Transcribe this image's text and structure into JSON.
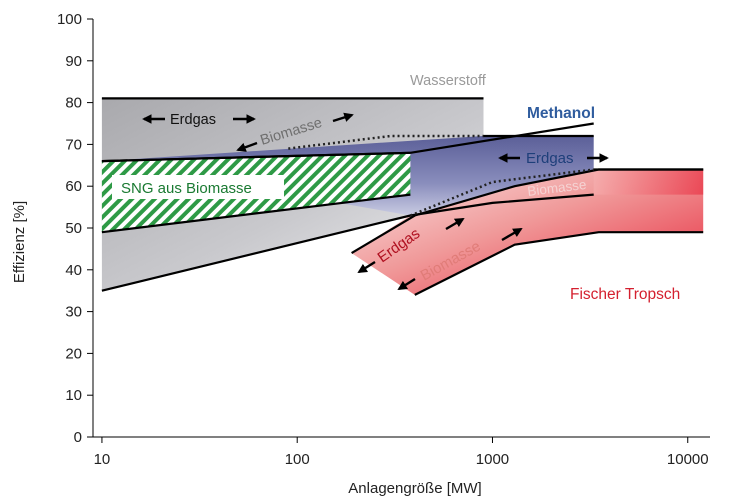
{
  "chart_data": {
    "type": "area",
    "xlabel": "Anlagengröße [MW]",
    "ylabel": "Effizienz [%]",
    "x_scale": "log",
    "xlim": [
      9,
      13000
    ],
    "ylim": [
      0,
      100
    ],
    "x_ticks": [
      10,
      100,
      1000,
      10000
    ],
    "x_tick_labels": [
      "10",
      "100",
      "1000",
      "10000"
    ],
    "y_ticks": [
      0,
      10,
      20,
      30,
      40,
      50,
      60,
      70,
      80,
      90,
      100
    ],
    "grid": false,
    "colors": {
      "gray_region": "#b9b9bd",
      "blue_region": "#6d72a8",
      "red_region": "#e8263a",
      "green_hatch": "#2e9a46",
      "wasserstoff_label": "#9a9a9a",
      "methanol_label": "#2f5c9e",
      "erdgas_methanol_label": "#1e3f7a",
      "fischer_label": "#d4202f",
      "red_annot": "#b01020",
      "salmon_annot": "#e07c78"
    },
    "regions": [
      {
        "name": "Wasserstoff",
        "upper": {
          "x": [
            10,
            900
          ],
          "y": [
            81,
            81
          ]
        },
        "lower": {
          "x": [
            10,
            380,
            900
          ],
          "y": [
            35,
            53,
            56
          ]
        }
      },
      {
        "name": "Methanol",
        "upper": {
          "x": [
            10,
            900,
            3300
          ],
          "y": [
            66,
            72,
            72
          ]
        },
        "lower": {
          "x": [
            380,
            3300
          ],
          "y": [
            53,
            58
          ]
        }
      },
      {
        "name": "Fischer Tropsch",
        "upper": {
          "x": [
            190,
            380,
            1300,
            3500,
            12000
          ],
          "y": [
            44,
            53,
            60,
            64,
            64
          ]
        },
        "lower": {
          "x": [
            400,
            1300,
            3500,
            12000
          ],
          "y": [
            34,
            46,
            49,
            49
          ]
        }
      },
      {
        "name": "SNG aus Biomasse",
        "upper": {
          "x": [
            10,
            380
          ],
          "y": [
            66,
            68
          ]
        },
        "lower": {
          "x": [
            10,
            380
          ],
          "y": [
            49,
            58
          ]
        }
      }
    ],
    "boundary_lines": [
      {
        "x": [
          10,
          900
        ],
        "y": [
          81,
          81
        ]
      },
      {
        "x": [
          900,
          3300
        ],
        "y": [
          72,
          72
        ]
      },
      {
        "x": [
          10,
          380,
          1000,
          3300
        ],
        "y": [
          35,
          53,
          56,
          58
        ]
      },
      {
        "x": [
          10,
          380
        ],
        "y": [
          66,
          68
        ]
      },
      {
        "x": [
          10,
          380
        ],
        "y": [
          49,
          58
        ]
      },
      {
        "x": [
          10,
          380
        ],
        "y": [
          66,
          68
        ]
      },
      {
        "x": [
          380,
          3300
        ],
        "y": [
          68,
          75
        ]
      },
      {
        "x": [
          3300,
          12000
        ],
        "y": [
          64,
          64
        ]
      },
      {
        "x": [
          190,
          400,
          1300,
          3500,
          12000
        ],
        "y": [
          44,
          53,
          60,
          64,
          64
        ]
      },
      {
        "x": [
          400,
          1300,
          3500,
          12000
        ],
        "y": [
          34,
          46,
          49,
          49
        ]
      }
    ],
    "dotted_lines": [
      {
        "x": [
          90,
          300,
          900
        ],
        "y": [
          69,
          72,
          72
        ]
      },
      {
        "x": [
          380,
          1000,
          3300
        ],
        "y": [
          53,
          61,
          64
        ]
      }
    ],
    "labels": {
      "wasserstoff": "Wasserstoff",
      "methanol": "Methanol",
      "fischer": "Fischer Tropsch",
      "sng": "SNG aus Biomasse",
      "erdgas_h2": "Erdgas",
      "biomasse_h2": "Biomasse",
      "erdgas_me": "Erdgas",
      "biomasse_me": "Biomasse",
      "erdgas_ft": "Erdgas",
      "biomasse_ft": "Biomasse"
    }
  }
}
